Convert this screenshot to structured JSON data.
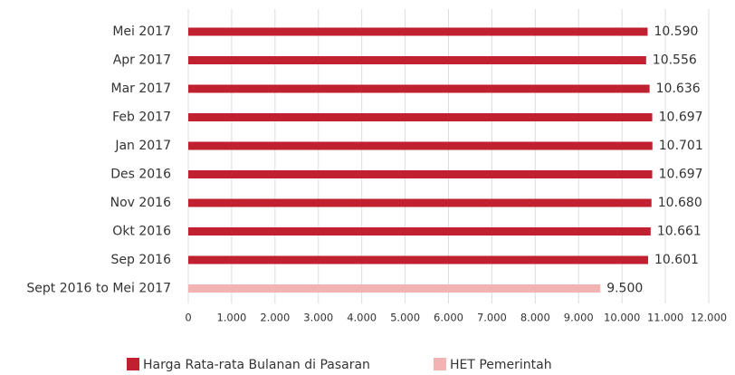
{
  "chart_data": {
    "type": "hbar",
    "categories": [
      "Mei 2017",
      "Apr 2017",
      "Mar 2017",
      "Feb 2017",
      "Jan 2017",
      "Des 2016",
      "Nov 2016",
      "Okt 2016",
      "Sep 2016",
      "Sept 2016 to Mei 2017"
    ],
    "series": [
      {
        "name": "Harga Rata-rata Bulanan di Pasaran",
        "color": "#c0202f",
        "values": [
          10590,
          10556,
          10636,
          10697,
          10701,
          10697,
          10680,
          10661,
          10601,
          null
        ],
        "value_labels": [
          "10.590",
          "10.556",
          "10.636",
          "10.697",
          "10.701",
          "10.697",
          "10.680",
          "10.661",
          "10.601",
          null
        ]
      },
      {
        "name": "HET Pemerintah",
        "color": "#f2b3b3",
        "values": [
          null,
          null,
          null,
          null,
          null,
          null,
          null,
          null,
          null,
          9500
        ],
        "value_labels": [
          null,
          null,
          null,
          null,
          null,
          null,
          null,
          null,
          null,
          "9.500"
        ]
      }
    ],
    "xlim": [
      0,
      12000
    ],
    "xticks": [
      0,
      {
        "value": 1000,
        "label": "1.000"
      },
      {
        "value": 2000,
        "label": "2.000"
      },
      {
        "value": 3000,
        "label": "3.000"
      },
      {
        "value": 4000,
        "label": "4.000"
      },
      {
        "value": 5000,
        "label": "5.000"
      },
      {
        "value": 6000,
        "label": "6.000"
      },
      {
        "value": 7000,
        "label": "7.000"
      },
      {
        "value": 8000,
        "label": "8.000"
      },
      {
        "value": 9000,
        "label": "9.000"
      },
      {
        "value": 10000,
        "label": "10.000"
      },
      {
        "value": 11000,
        "label": "11.000"
      },
      {
        "value": 12000,
        "label": "12.000"
      }
    ],
    "grid": true,
    "legend": "bottom"
  }
}
